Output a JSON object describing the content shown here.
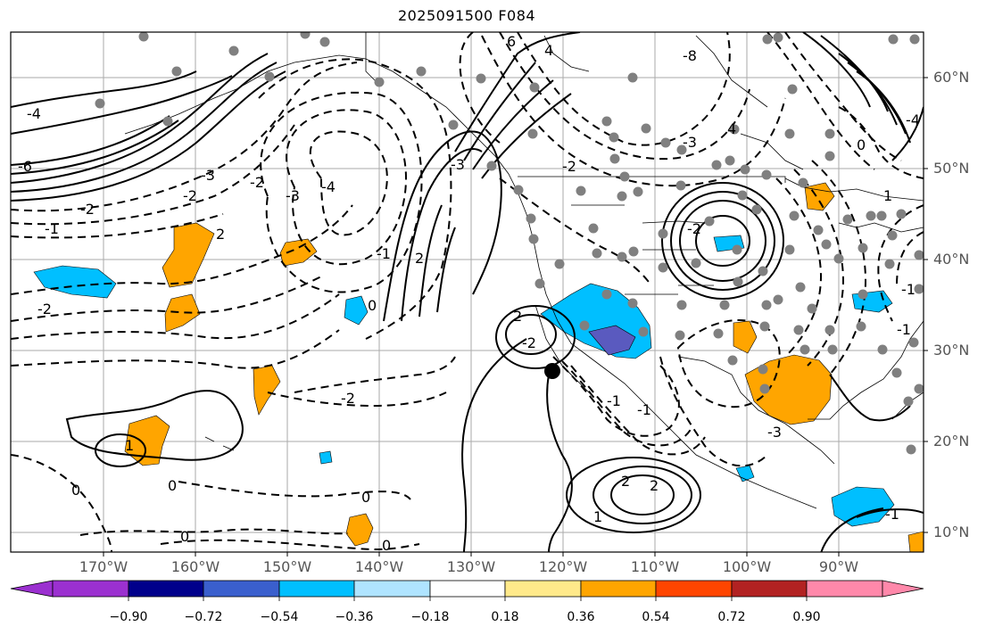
{
  "title": "2025091500 F084",
  "latitude_labels": [
    "60°N",
    "50°N",
    "40°N",
    "30°N",
    "20°N",
    "10°N"
  ],
  "longitude_labels": [
    "170°W",
    "160°W",
    "150°W",
    "140°W",
    "130°W",
    "120°W",
    "110°W",
    "100°W",
    "90°W"
  ],
  "contour_labels": [
    "-4",
    "-6",
    "-2",
    "-3",
    "-2",
    "-1",
    "-2",
    "2",
    "-4",
    "-3",
    "-2",
    "0",
    "-2",
    "-1",
    "1",
    "0",
    "-3",
    "6",
    "-8",
    "4",
    "-3",
    "-2",
    "2",
    "2",
    "-2",
    "-2",
    "-1",
    "-1",
    "1",
    "2",
    "2",
    "1",
    "0",
    "0",
    "0",
    "0",
    "-1",
    "4",
    "-4",
    "-3",
    "-1",
    "0",
    "-1"
  ],
  "colorbar": {
    "ticks": [
      "−0.90",
      "−0.72",
      "−0.54",
      "−0.36",
      "−0.18",
      "0.18",
      "0.36",
      "0.54",
      "0.72",
      "0.90"
    ],
    "colors": [
      "#9b30d0",
      "#00008b",
      "#3a5fcd",
      "#00bfff",
      "#afe4ff",
      "#ffffff",
      "#ffe98a",
      "#ffa500",
      "#ff4500",
      "#b22222",
      "#ff88aa"
    ]
  },
  "colors": {
    "positive_fill": "#ffa500",
    "negative_fill": "#00bfff",
    "strong_negative_fill": "#5a5abf",
    "station_marker": "#808080",
    "storm_marker": "#000000",
    "gridline": "#aaaaaa"
  },
  "icons": [
    "storm-center-marker",
    "station-dots"
  ]
}
